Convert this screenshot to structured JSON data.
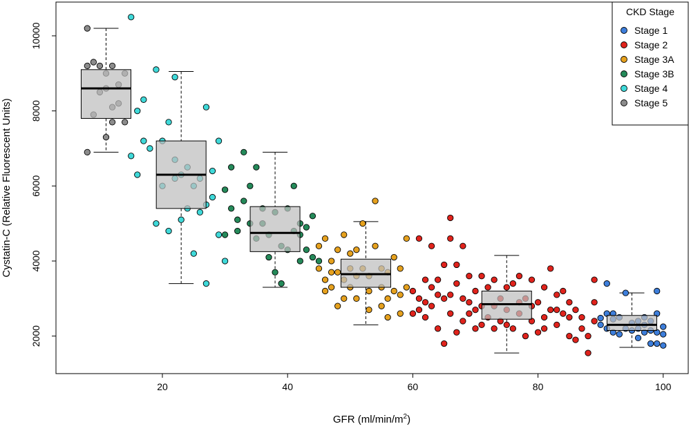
{
  "chart_data": {
    "type": "scatter",
    "xlabel": "GFR (ml/min/m",
    "xlabel_sup": "2",
    "xlabel_close": ")",
    "ylabel": "Cystatin-C (Relative Fluorescent Units)",
    "xlim": [
      3,
      104
    ],
    "ylim": [
      1000,
      10900
    ],
    "x_ticks": [
      20,
      40,
      60,
      80,
      100
    ],
    "y_ticks": [
      2000,
      4000,
      6000,
      8000,
      10000
    ],
    "legend": {
      "title": "CKD Stage",
      "position": "top-right",
      "entries": [
        "Stage 1",
        "Stage 2",
        "Stage 3A",
        "Stage 3B",
        "Stage 4",
        "Stage 5"
      ]
    },
    "series": [
      {
        "name": "Stage 1",
        "color": "#3D7EDB",
        "points": [
          [
            90,
            2300
          ],
          [
            90,
            2480
          ],
          [
            91,
            2200
          ],
          [
            91,
            3400
          ],
          [
            92,
            2600
          ],
          [
            93,
            2500
          ],
          [
            93,
            2050
          ],
          [
            94,
            2200
          ],
          [
            94,
            3150
          ],
          [
            95,
            2350
          ],
          [
            95,
            2150
          ],
          [
            96,
            2400
          ],
          [
            96,
            1950
          ],
          [
            97,
            2300
          ],
          [
            97,
            2100
          ],
          [
            98,
            1800
          ],
          [
            98,
            2400
          ],
          [
            99,
            2600
          ],
          [
            99,
            2100
          ],
          [
            99,
            3200
          ],
          [
            100,
            2250
          ],
          [
            100,
            2050
          ],
          [
            100,
            1750
          ],
          [
            91,
            2600
          ],
          [
            92,
            2100
          ],
          [
            97,
            2500
          ],
          [
            98,
            2150
          ],
          [
            96,
            2200
          ],
          [
            99,
            1800
          ],
          [
            92,
            2450
          ]
        ]
      },
      {
        "name": "Stage 2",
        "color": "#E0231C",
        "points": [
          [
            60,
            2600
          ],
          [
            60,
            3200
          ],
          [
            61,
            4600
          ],
          [
            61,
            3000
          ],
          [
            62,
            2500
          ],
          [
            62,
            3500
          ],
          [
            63,
            4400
          ],
          [
            63,
            2800
          ],
          [
            64,
            3100
          ],
          [
            64,
            2200
          ],
          [
            65,
            3900
          ],
          [
            65,
            1800
          ],
          [
            66,
            5150
          ],
          [
            66,
            4600
          ],
          [
            66,
            2600
          ],
          [
            67,
            3400
          ],
          [
            67,
            2100
          ],
          [
            68,
            4400
          ],
          [
            68,
            3000
          ],
          [
            68,
            2400
          ],
          [
            69,
            3600
          ],
          [
            69,
            2600
          ],
          [
            70,
            3200
          ],
          [
            70,
            2200
          ],
          [
            71,
            3600
          ],
          [
            71,
            2800
          ],
          [
            72,
            3300
          ],
          [
            72,
            2500
          ],
          [
            73,
            3500
          ],
          [
            73,
            2200
          ],
          [
            74,
            3000
          ],
          [
            74,
            2400
          ],
          [
            75,
            3300
          ],
          [
            75,
            2700
          ],
          [
            76,
            3400
          ],
          [
            76,
            2200
          ],
          [
            77,
            2600
          ],
          [
            77,
            3600
          ],
          [
            78,
            3000
          ],
          [
            78,
            2000
          ],
          [
            79,
            3500
          ],
          [
            79,
            2400
          ],
          [
            80,
            2900
          ],
          [
            80,
            2100
          ],
          [
            81,
            3300
          ],
          [
            81,
            2500
          ],
          [
            82,
            3800
          ],
          [
            82,
            2700
          ],
          [
            83,
            3100
          ],
          [
            83,
            2300
          ],
          [
            84,
            3200
          ],
          [
            84,
            2600
          ],
          [
            85,
            2900
          ],
          [
            85,
            2000
          ],
          [
            86,
            2700
          ],
          [
            86,
            1900
          ],
          [
            87,
            2500
          ],
          [
            88,
            2000
          ],
          [
            88,
            1550
          ],
          [
            89,
            3500
          ],
          [
            89,
            2900
          ],
          [
            89,
            2400
          ],
          [
            64,
            3500
          ],
          [
            62,
            2900
          ],
          [
            63,
            3300
          ],
          [
            65,
            3000
          ],
          [
            67,
            3900
          ],
          [
            69,
            2900
          ],
          [
            71,
            2300
          ],
          [
            73,
            2800
          ],
          [
            75,
            2300
          ],
          [
            77,
            2900
          ],
          [
            79,
            2800
          ],
          [
            81,
            2200
          ],
          [
            83,
            2700
          ],
          [
            85,
            2500
          ],
          [
            87,
            2200
          ],
          [
            61,
            2700
          ],
          [
            66,
            3100
          ],
          [
            70,
            2700
          ]
        ]
      },
      {
        "name": "Stage 3A",
        "color": "#E6A11E",
        "points": [
          [
            45,
            4400
          ],
          [
            45,
            3800
          ],
          [
            46,
            4600
          ],
          [
            46,
            3500
          ],
          [
            47,
            4000
          ],
          [
            47,
            3300
          ],
          [
            48,
            4300
          ],
          [
            48,
            3700
          ],
          [
            48,
            2800
          ],
          [
            49,
            4700
          ],
          [
            49,
            3500
          ],
          [
            50,
            4200
          ],
          [
            50,
            3300
          ],
          [
            51,
            4300
          ],
          [
            51,
            3000
          ],
          [
            52,
            5000
          ],
          [
            52,
            3800
          ],
          [
            53,
            3200
          ],
          [
            53,
            2700
          ],
          [
            54,
            5600
          ],
          [
            54,
            4400
          ],
          [
            55,
            3800
          ],
          [
            55,
            3300
          ],
          [
            56,
            3000
          ],
          [
            56,
            2500
          ],
          [
            57,
            4100
          ],
          [
            57,
            3200
          ],
          [
            58,
            3800
          ],
          [
            58,
            2600
          ],
          [
            59,
            4600
          ],
          [
            59,
            3300
          ],
          [
            46,
            3200
          ],
          [
            47,
            3700
          ],
          [
            49,
            3000
          ],
          [
            50,
            3800
          ],
          [
            53,
            3600
          ],
          [
            55,
            2800
          ],
          [
            56,
            3700
          ],
          [
            58,
            3100
          ],
          [
            51,
            3600
          ]
        ]
      },
      {
        "name": "Stage 3B",
        "color": "#258A5A",
        "points": [
          [
            30,
            5900
          ],
          [
            30,
            4700
          ],
          [
            31,
            6500
          ],
          [
            31,
            5400
          ],
          [
            32,
            5100
          ],
          [
            32,
            4800
          ],
          [
            33,
            6900
          ],
          [
            33,
            5600
          ],
          [
            34,
            6000
          ],
          [
            34,
            5000
          ],
          [
            35,
            4600
          ],
          [
            36,
            5400
          ],
          [
            37,
            4700
          ],
          [
            37,
            4100
          ],
          [
            38,
            5300
          ],
          [
            38,
            3700
          ],
          [
            39,
            4400
          ],
          [
            39,
            3400
          ],
          [
            40,
            5400
          ],
          [
            40,
            4300
          ],
          [
            41,
            6000
          ],
          [
            41,
            4800
          ],
          [
            42,
            5000
          ],
          [
            42,
            4000
          ],
          [
            43,
            4900
          ],
          [
            43,
            4300
          ],
          [
            44,
            5200
          ],
          [
            44,
            4100
          ],
          [
            45,
            4000
          ],
          [
            35,
            6500
          ],
          [
            36,
            5000
          ],
          [
            42,
            4700
          ]
        ]
      },
      {
        "name": "Stage 4",
        "color": "#3FD9D9",
        "points": [
          [
            15,
            10500
          ],
          [
            15,
            6800
          ],
          [
            16,
            8000
          ],
          [
            16,
            6300
          ],
          [
            17,
            8300
          ],
          [
            17,
            7200
          ],
          [
            18,
            7000
          ],
          [
            19,
            9100
          ],
          [
            19,
            5000
          ],
          [
            20,
            7200
          ],
          [
            20,
            6000
          ],
          [
            21,
            7700
          ],
          [
            21,
            4800
          ],
          [
            22,
            6700
          ],
          [
            22,
            6200
          ],
          [
            23,
            6300
          ],
          [
            24,
            6500
          ],
          [
            24,
            5400
          ],
          [
            25,
            6000
          ],
          [
            25,
            4200
          ],
          [
            26,
            6200
          ],
          [
            26,
            5300
          ],
          [
            27,
            8100
          ],
          [
            27,
            3400
          ],
          [
            28,
            6400
          ],
          [
            28,
            5700
          ],
          [
            29,
            7200
          ],
          [
            29,
            4700
          ],
          [
            30,
            4000
          ],
          [
            23,
            5100
          ],
          [
            22,
            8900
          ],
          [
            27,
            5500
          ]
        ]
      },
      {
        "name": "Stage 5",
        "color": "#8C8C8C",
        "points": [
          [
            8,
            10200
          ],
          [
            8,
            9200
          ],
          [
            8,
            6900
          ],
          [
            9,
            9300
          ],
          [
            9,
            7900
          ],
          [
            10,
            8500
          ],
          [
            10,
            9200
          ],
          [
            11,
            9000
          ],
          [
            11,
            7300
          ],
          [
            12,
            8100
          ],
          [
            12,
            7700
          ],
          [
            13,
            8700
          ],
          [
            13,
            8200
          ],
          [
            14,
            9000
          ],
          [
            14,
            7700
          ],
          [
            12,
            9200
          ],
          [
            11,
            8600
          ]
        ]
      }
    ],
    "boxplots": [
      {
        "x": 11,
        "whisker_low": 6900,
        "q1": 7800,
        "median": 8600,
        "q3": 9100,
        "whisker_high": 10200
      },
      {
        "x": 23,
        "whisker_low": 3400,
        "q1": 5400,
        "median": 6300,
        "q3": 7200,
        "whisker_high": 9050
      },
      {
        "x": 38,
        "whisker_low": 3300,
        "q1": 4250,
        "median": 4750,
        "q3": 5450,
        "whisker_high": 6900
      },
      {
        "x": 52.5,
        "whisker_low": 2300,
        "q1": 3300,
        "median": 3650,
        "q3": 4050,
        "whisker_high": 5050
      },
      {
        "x": 75,
        "whisker_low": 1550,
        "q1": 2450,
        "median": 2850,
        "q3": 3200,
        "whisker_high": 4150
      },
      {
        "x": 95,
        "whisker_low": 1700,
        "q1": 2150,
        "median": 2300,
        "q3": 2550,
        "whisker_high": 3150
      }
    ]
  }
}
